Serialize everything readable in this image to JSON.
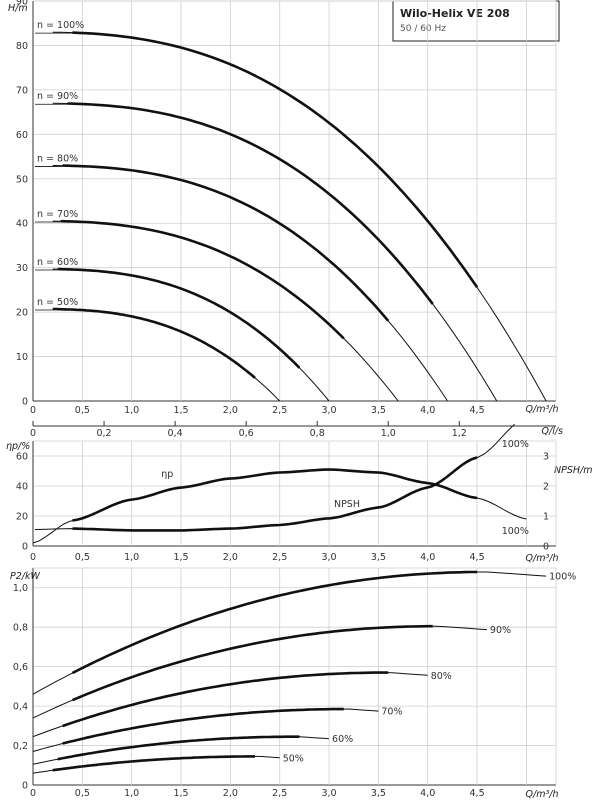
{
  "title_box": {
    "title": "Wilo-Helix VE 208",
    "subtitle": "50 / 60 Hz"
  },
  "axes": {
    "h_label": "H/m",
    "q_label": "Q/m³/h",
    "ls_label": "Q/l/s",
    "eta_label": "ηp/%",
    "npsh_label": "NPSH/m",
    "p2_label": "P2/kW",
    "q_ticks": [
      "0",
      "0,5",
      "1,0",
      "1,5",
      "2,0",
      "2,5",
      "3,0",
      "3,5",
      "4,0",
      "4,5"
    ],
    "ls_ticks": [
      "0",
      "0,2",
      "0,4",
      "0,6",
      "0,8",
      "1,0",
      "1,2"
    ],
    "h_ticks": [
      "0",
      "10",
      "20",
      "30",
      "40",
      "50",
      "60",
      "70",
      "80",
      "90"
    ],
    "eta_ticks": [
      "0",
      "20",
      "40",
      "60"
    ],
    "npsh_ticks": [
      "0",
      "1",
      "2",
      "3"
    ],
    "p_ticks": [
      "0",
      "0,2",
      "0,4",
      "0,6",
      "0,8",
      "1,0"
    ]
  },
  "chart_data": [
    {
      "type": "line",
      "ylabel": "H/m",
      "xlabel": "Q/m³/h",
      "secondary_xlabel": "Q/l/s",
      "xlim": [
        0,
        5.3
      ],
      "ylim": [
        0,
        90
      ],
      "grid": true,
      "series": [
        {
          "name": "n = 100%",
          "q_max": 5.2,
          "h0": 83.0,
          "k": 2.55,
          "bold": [
            0.4,
            4.5
          ]
        },
        {
          "name": "n = 90%",
          "q_max": 4.7,
          "h0": 67.0,
          "k": 2.65,
          "bold": [
            0.35,
            4.05
          ]
        },
        {
          "name": "n = 80%",
          "q_max": 4.2,
          "h0": 53.0,
          "k": 2.7,
          "bold": [
            0.3,
            3.6
          ]
        },
        {
          "name": "n = 70%",
          "q_max": 3.7,
          "h0": 40.5,
          "k": 2.65,
          "bold": [
            0.28,
            3.15
          ]
        },
        {
          "name": "n = 60%",
          "q_max": 3.0,
          "h0": 29.7,
          "k": 2.75,
          "bold": [
            0.25,
            2.7
          ]
        },
        {
          "name": "n = 50%",
          "q_max": 2.5,
          "h0": 20.7,
          "k": 2.75,
          "bold": [
            0.2,
            2.25
          ]
        }
      ]
    },
    {
      "type": "line",
      "ylabel": "ηp/%",
      "y2label": "NPSH/m",
      "xlabel": "Q/m³/h",
      "xlim": [
        0,
        5.3
      ],
      "ylim": [
        0,
        70
      ],
      "y2lim": [
        0,
        3.5
      ],
      "series": [
        {
          "name": "ηp",
          "x": [
            0,
            0.4,
            1.0,
            1.5,
            2.0,
            2.5,
            3.0,
            3.5,
            4.0,
            4.5,
            5.0
          ],
          "y": [
            2,
            17,
            31,
            39,
            45,
            49,
            51,
            49,
            42,
            32,
            18
          ],
          "bold": [
            0.4,
            4.5
          ]
        },
        {
          "name": "NPSH",
          "x": [
            0,
            0.4,
            1.0,
            1.5,
            2.0,
            2.5,
            3.0,
            3.5,
            4.0,
            4.5,
            5.0
          ],
          "y": [
            0.55,
            0.58,
            0.52,
            0.52,
            0.58,
            0.7,
            0.92,
            1.28,
            1.95,
            2.95,
            4.3
          ],
          "bold": [
            0.4,
            4.5
          ]
        }
      ],
      "annotations": [
        "100%",
        "100%"
      ]
    },
    {
      "type": "line",
      "ylabel": "P2/kW",
      "xlabel": "Q/m³/h",
      "xlim": [
        0,
        5.3
      ],
      "ylim": [
        0,
        1.1
      ],
      "series": [
        {
          "name": "100%",
          "q_max": 5.2,
          "p0": 0.46,
          "pm": 1.08,
          "qm": 4.6,
          "bold": [
            0.4,
            4.5
          ]
        },
        {
          "name": "90%",
          "q_max": 4.6,
          "p0": 0.34,
          "pm": 0.805,
          "qm": 4.1,
          "bold": [
            0.4,
            4.05
          ]
        },
        {
          "name": "80%",
          "q_max": 4.0,
          "p0": 0.245,
          "pm": 0.57,
          "qm": 3.6,
          "bold": [
            0.3,
            3.6
          ]
        },
        {
          "name": "70%",
          "q_max": 3.5,
          "p0": 0.17,
          "pm": 0.385,
          "qm": 3.2,
          "bold": [
            0.3,
            3.15
          ]
        },
        {
          "name": "60%",
          "q_max": 3.0,
          "p0": 0.105,
          "pm": 0.245,
          "qm": 2.7,
          "bold": [
            0.25,
            2.7
          ]
        },
        {
          "name": "50%",
          "q_max": 2.5,
          "p0": 0.06,
          "pm": 0.145,
          "qm": 2.3,
          "bold": [
            0.2,
            2.25
          ]
        }
      ]
    }
  ]
}
